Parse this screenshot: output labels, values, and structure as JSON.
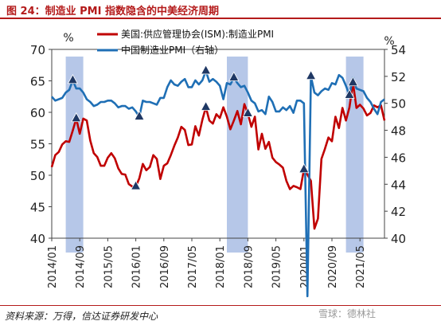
{
  "figure": {
    "title": "图 24：制造业 PMI 指数隐含的中美经济周期",
    "source": "资料来源：万得，信达证券研发中心",
    "watermark": "雪球：德林社"
  },
  "colors": {
    "us": "#c00000",
    "china": "#1f6fb5",
    "band": "#a9bde4",
    "marker": "#1f3864",
    "title": "#b41a1a"
  },
  "chart_data": {
    "type": "line",
    "y_left_unit": "%",
    "y_right_unit": "%",
    "ylim_left": [
      40,
      70
    ],
    "ylim_right": [
      40,
      54
    ],
    "yticks_left": [
      40,
      45,
      50,
      55,
      60,
      65,
      70
    ],
    "yticks_right": [
      40,
      42,
      44,
      46,
      48,
      50,
      52,
      54
    ],
    "xlim": [
      "2014-01",
      "2021-12"
    ],
    "xticks": [
      "2014/01",
      "2014/09",
      "2015/05",
      "2016/01",
      "2016/09",
      "2017/05",
      "2018/01",
      "2018/09",
      "2019/05",
      "2020/01",
      "2020/09",
      "2021/05"
    ],
    "grid": false,
    "legend": "top-center",
    "shaded_periods": [
      {
        "start": "2014-05",
        "end": "2014-10"
      },
      {
        "start": "2018-03",
        "end": "2018-09"
      },
      {
        "start": "2021-01",
        "end": "2021-06"
      }
    ],
    "series": [
      {
        "name": "美国:供应管理协会(ISM):制造业PMI",
        "axis": "left",
        "color": "#c00000",
        "points": [
          [
            "2014-01",
            51.3
          ],
          [
            "2014-02",
            53.2
          ],
          [
            "2014-03",
            53.7
          ],
          [
            "2014-04",
            54.9
          ],
          [
            "2014-05",
            55.4
          ],
          [
            "2014-06",
            55.3
          ],
          [
            "2014-07",
            57.1
          ],
          [
            "2014-08",
            59.0
          ],
          [
            "2014-09",
            56.6
          ],
          [
            "2014-10",
            59.0
          ],
          [
            "2014-11",
            58.7
          ],
          [
            "2014-12",
            55.5
          ],
          [
            "2015-01",
            53.5
          ],
          [
            "2015-02",
            52.9
          ],
          [
            "2015-03",
            51.5
          ],
          [
            "2015-04",
            51.5
          ],
          [
            "2015-05",
            52.8
          ],
          [
            "2015-06",
            53.5
          ],
          [
            "2015-07",
            52.7
          ],
          [
            "2015-08",
            51.1
          ],
          [
            "2015-09",
            50.2
          ],
          [
            "2015-10",
            50.1
          ],
          [
            "2015-11",
            48.6
          ],
          [
            "2015-12",
            48.2
          ],
          [
            "2016-01",
            48.2
          ],
          [
            "2016-02",
            49.5
          ],
          [
            "2016-03",
            51.8
          ],
          [
            "2016-04",
            50.8
          ],
          [
            "2016-05",
            51.3
          ],
          [
            "2016-06",
            53.2
          ],
          [
            "2016-07",
            52.6
          ],
          [
            "2016-08",
            49.4
          ],
          [
            "2016-09",
            51.5
          ],
          [
            "2016-10",
            51.9
          ],
          [
            "2016-11",
            53.2
          ],
          [
            "2016-12",
            54.7
          ],
          [
            "2017-01",
            56.0
          ],
          [
            "2017-02",
            57.7
          ],
          [
            "2017-03",
            57.2
          ],
          [
            "2017-04",
            54.8
          ],
          [
            "2017-05",
            54.9
          ],
          [
            "2017-06",
            57.8
          ],
          [
            "2017-07",
            56.3
          ],
          [
            "2017-08",
            58.8
          ],
          [
            "2017-09",
            60.8
          ],
          [
            "2017-10",
            58.7
          ],
          [
            "2017-11",
            58.2
          ],
          [
            "2017-12",
            59.7
          ],
          [
            "2018-01",
            59.1
          ],
          [
            "2018-02",
            60.8
          ],
          [
            "2018-03",
            59.3
          ],
          [
            "2018-04",
            57.3
          ],
          [
            "2018-05",
            58.7
          ],
          [
            "2018-06",
            60.2
          ],
          [
            "2018-07",
            58.1
          ],
          [
            "2018-08",
            61.3
          ],
          [
            "2018-09",
            59.8
          ],
          [
            "2018-10",
            57.7
          ],
          [
            "2018-11",
            59.3
          ],
          [
            "2018-12",
            54.1
          ],
          [
            "2019-01",
            56.6
          ],
          [
            "2019-02",
            54.2
          ],
          [
            "2019-03",
            55.3
          ],
          [
            "2019-04",
            52.8
          ],
          [
            "2019-05",
            52.1
          ],
          [
            "2019-06",
            51.7
          ],
          [
            "2019-07",
            51.2
          ],
          [
            "2019-08",
            49.1
          ],
          [
            "2019-09",
            47.8
          ],
          [
            "2019-10",
            48.3
          ],
          [
            "2019-11",
            48.1
          ],
          [
            "2019-12",
            47.8
          ],
          [
            "2020-01",
            50.9
          ],
          [
            "2020-02",
            50.1
          ],
          [
            "2020-03",
            49.1
          ],
          [
            "2020-04",
            41.5
          ],
          [
            "2020-05",
            43.1
          ],
          [
            "2020-06",
            52.6
          ],
          [
            "2020-07",
            54.2
          ],
          [
            "2020-08",
            56.0
          ],
          [
            "2020-09",
            55.4
          ],
          [
            "2020-10",
            59.3
          ],
          [
            "2020-11",
            57.5
          ],
          [
            "2020-12",
            60.7
          ],
          [
            "2021-01",
            58.7
          ],
          [
            "2021-02",
            60.8
          ],
          [
            "2021-03",
            64.7
          ],
          [
            "2021-04",
            60.7
          ],
          [
            "2021-05",
            61.2
          ],
          [
            "2021-06",
            60.6
          ],
          [
            "2021-07",
            59.5
          ],
          [
            "2021-08",
            59.9
          ],
          [
            "2021-09",
            61.1
          ],
          [
            "2021-10",
            60.8
          ],
          [
            "2021-11",
            61.1
          ],
          [
            "2021-12",
            58.7
          ]
        ]
      },
      {
        "name": "中国制造业PMI（右轴）",
        "axis": "right",
        "color": "#1f6fb5",
        "points": [
          [
            "2014-01",
            50.5
          ],
          [
            "2014-02",
            50.2
          ],
          [
            "2014-03",
            50.3
          ],
          [
            "2014-04",
            50.4
          ],
          [
            "2014-05",
            50.8
          ],
          [
            "2014-06",
            51.0
          ],
          [
            "2014-07",
            51.7
          ],
          [
            "2014-08",
            51.1
          ],
          [
            "2014-09",
            51.1
          ],
          [
            "2014-10",
            50.8
          ],
          [
            "2014-11",
            50.3
          ],
          [
            "2014-12",
            50.1
          ],
          [
            "2015-01",
            49.8
          ],
          [
            "2015-02",
            49.9
          ],
          [
            "2015-03",
            50.1
          ],
          [
            "2015-04",
            50.1
          ],
          [
            "2015-05",
            50.2
          ],
          [
            "2015-06",
            50.2
          ],
          [
            "2015-07",
            50.0
          ],
          [
            "2015-08",
            49.7
          ],
          [
            "2015-09",
            49.8
          ],
          [
            "2015-10",
            49.8
          ],
          [
            "2015-11",
            49.6
          ],
          [
            "2015-12",
            49.7
          ],
          [
            "2016-01",
            49.4
          ],
          [
            "2016-02",
            49.0
          ],
          [
            "2016-03",
            50.2
          ],
          [
            "2016-04",
            50.1
          ],
          [
            "2016-05",
            50.1
          ],
          [
            "2016-06",
            50.0
          ],
          [
            "2016-07",
            49.9
          ],
          [
            "2016-08",
            50.4
          ],
          [
            "2016-09",
            50.4
          ],
          [
            "2016-10",
            51.2
          ],
          [
            "2016-11",
            51.7
          ],
          [
            "2016-12",
            51.4
          ],
          [
            "2017-01",
            51.3
          ],
          [
            "2017-02",
            51.6
          ],
          [
            "2017-03",
            51.8
          ],
          [
            "2017-04",
            51.2
          ],
          [
            "2017-05",
            51.2
          ],
          [
            "2017-06",
            51.7
          ],
          [
            "2017-07",
            51.4
          ],
          [
            "2017-08",
            51.7
          ],
          [
            "2017-09",
            52.4
          ],
          [
            "2017-10",
            51.6
          ],
          [
            "2017-11",
            51.8
          ],
          [
            "2017-12",
            51.6
          ],
          [
            "2018-01",
            51.3
          ],
          [
            "2018-02",
            50.3
          ],
          [
            "2018-03",
            51.5
          ],
          [
            "2018-04",
            51.4
          ],
          [
            "2018-05",
            51.9
          ],
          [
            "2018-06",
            51.5
          ],
          [
            "2018-07",
            51.2
          ],
          [
            "2018-08",
            51.3
          ],
          [
            "2018-09",
            50.8
          ],
          [
            "2018-10",
            50.2
          ],
          [
            "2018-11",
            50.0
          ],
          [
            "2018-12",
            49.4
          ],
          [
            "2019-01",
            49.5
          ],
          [
            "2019-02",
            49.2
          ],
          [
            "2019-03",
            50.5
          ],
          [
            "2019-04",
            50.1
          ],
          [
            "2019-05",
            49.4
          ],
          [
            "2019-06",
            49.4
          ],
          [
            "2019-07",
            49.7
          ],
          [
            "2019-08",
            49.5
          ],
          [
            "2019-09",
            49.8
          ],
          [
            "2019-10",
            49.3
          ],
          [
            "2019-11",
            50.2
          ],
          [
            "2019-12",
            50.2
          ],
          [
            "2020-01",
            50.0
          ],
          [
            "2020-02",
            35.7
          ],
          [
            "2020-03",
            52.0
          ],
          [
            "2020-04",
            50.8
          ],
          [
            "2020-05",
            50.6
          ],
          [
            "2020-06",
            50.9
          ],
          [
            "2020-07",
            51.1
          ],
          [
            "2020-08",
            51.0
          ],
          [
            "2020-09",
            51.5
          ],
          [
            "2020-10",
            51.4
          ],
          [
            "2020-11",
            52.1
          ],
          [
            "2020-12",
            51.9
          ],
          [
            "2021-01",
            51.3
          ],
          [
            "2021-02",
            50.6
          ],
          [
            "2021-03",
            51.9
          ],
          [
            "2021-04",
            51.1
          ],
          [
            "2021-05",
            51.0
          ],
          [
            "2021-06",
            50.9
          ],
          [
            "2021-07",
            50.4
          ],
          [
            "2021-08",
            50.1
          ],
          [
            "2021-09",
            49.6
          ],
          [
            "2021-10",
            49.2
          ],
          [
            "2021-11",
            50.1
          ],
          [
            "2021-12",
            50.3
          ]
        ]
      }
    ],
    "markers": [
      {
        "series": 1,
        "date": "2014-07"
      },
      {
        "series": 1,
        "date": "2016-02"
      },
      {
        "series": 1,
        "date": "2017-09"
      },
      {
        "series": 1,
        "date": "2018-05"
      },
      {
        "series": 1,
        "date": "2020-03"
      },
      {
        "series": 1,
        "date": "2021-02"
      },
      {
        "series": 0,
        "date": "2014-08"
      },
      {
        "series": 0,
        "date": "2016-01"
      },
      {
        "series": 0,
        "date": "2017-09"
      },
      {
        "series": 0,
        "date": "2018-09"
      },
      {
        "series": 0,
        "date": "2020-01"
      },
      {
        "series": 0,
        "date": "2021-03"
      }
    ]
  }
}
